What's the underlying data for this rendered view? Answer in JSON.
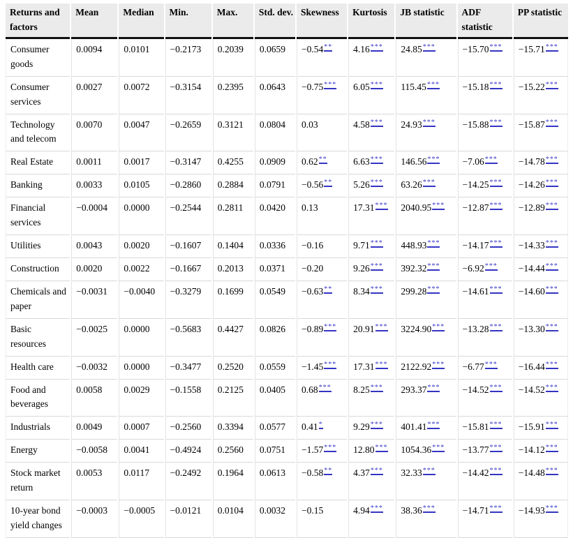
{
  "theme": {
    "header_bg": "#ebebeb",
    "significance_link_color": "#3b3bc8",
    "significance_underline_color": "#3434c4",
    "grid_line_color": "#d9d9d9",
    "header_rule_color": "#111111"
  },
  "table": {
    "columns": [
      "Returns and factors",
      "Mean",
      "Median",
      "Min.",
      "Max.",
      "Std. dev.",
      "Skewness",
      "Kurtosis",
      "JB statistic",
      "ADF statistic",
      "PP statistic"
    ],
    "rows": [
      {
        "label": "Consumer goods",
        "cells": [
          {
            "v": "0.0094"
          },
          {
            "v": "0.0101"
          },
          {
            "v": "−0.2173"
          },
          {
            "v": "0.2039"
          },
          {
            "v": "0.0659"
          },
          {
            "v": "−0.54",
            "sig": "**"
          },
          {
            "v": "4.16",
            "sig": "***"
          },
          {
            "v": "24.85",
            "sig": "***"
          },
          {
            "v": "−15.70",
            "sig": "***"
          },
          {
            "v": "−15.71",
            "sig": "***"
          }
        ]
      },
      {
        "label": "Consumer services",
        "cells": [
          {
            "v": "0.0027"
          },
          {
            "v": "0.0072"
          },
          {
            "v": "−0.3154"
          },
          {
            "v": "0.2395"
          },
          {
            "v": "0.0643"
          },
          {
            "v": "−0.75",
            "sig": "***"
          },
          {
            "v": "6.05",
            "sig": "***"
          },
          {
            "v": "115.45",
            "sig": "***"
          },
          {
            "v": "−15.18",
            "sig": "***"
          },
          {
            "v": "−15.22",
            "sig": "***"
          }
        ]
      },
      {
        "label": "Technology and telecom",
        "cells": [
          {
            "v": "0.0070"
          },
          {
            "v": "0.0047"
          },
          {
            "v": "−0.2659"
          },
          {
            "v": "0.3121"
          },
          {
            "v": "0.0804"
          },
          {
            "v": "0.03"
          },
          {
            "v": "4.58",
            "sig": "***"
          },
          {
            "v": "24.93",
            "sig": "***"
          },
          {
            "v": "−15.88",
            "sig": "***"
          },
          {
            "v": "−15.87",
            "sig": "***"
          }
        ]
      },
      {
        "label": "Real Estate",
        "cells": [
          {
            "v": "0.0011"
          },
          {
            "v": "0.0017"
          },
          {
            "v": "−0.3147"
          },
          {
            "v": "0.4255"
          },
          {
            "v": "0.0909"
          },
          {
            "v": "0.62",
            "sig": "**"
          },
          {
            "v": "6.63",
            "sig": "***"
          },
          {
            "v": "146.56",
            "sig": "***"
          },
          {
            "v": "−7.06",
            "sig": "***"
          },
          {
            "v": "−14.78",
            "sig": "***"
          }
        ]
      },
      {
        "label": "Banking",
        "cells": [
          {
            "v": "0.0033"
          },
          {
            "v": "0.0105"
          },
          {
            "v": "−0.2860"
          },
          {
            "v": "0.2884"
          },
          {
            "v": "0.0791"
          },
          {
            "v": "−0.56",
            "sig": "**"
          },
          {
            "v": "5.26",
            "sig": "***"
          },
          {
            "v": "63.26",
            "sig": "***"
          },
          {
            "v": "−14.25",
            "sig": "***"
          },
          {
            "v": "−14.26",
            "sig": "***"
          }
        ]
      },
      {
        "label": "Financial services",
        "cells": [
          {
            "v": "−0.0004"
          },
          {
            "v": "0.0000"
          },
          {
            "v": "−0.2544"
          },
          {
            "v": "0.2811"
          },
          {
            "v": "0.0420"
          },
          {
            "v": "0.13"
          },
          {
            "v": "17.31",
            "sig": "***"
          },
          {
            "v": "2040.95",
            "sig": "***"
          },
          {
            "v": "−12.87",
            "sig": "***"
          },
          {
            "v": "−12.89",
            "sig": "***"
          }
        ]
      },
      {
        "label": "Utilities",
        "cells": [
          {
            "v": "0.0043"
          },
          {
            "v": "0.0020"
          },
          {
            "v": "−0.1607"
          },
          {
            "v": "0.1404"
          },
          {
            "v": "0.0336"
          },
          {
            "v": "−0.16"
          },
          {
            "v": "9.71",
            "sig": "***"
          },
          {
            "v": "448.93",
            "sig": "***"
          },
          {
            "v": "−14.17",
            "sig": "***"
          },
          {
            "v": "−14.33",
            "sig": "***"
          }
        ]
      },
      {
        "label": "Construction",
        "cells": [
          {
            "v": "0.0020"
          },
          {
            "v": "0.0022"
          },
          {
            "v": "−0.1667"
          },
          {
            "v": "0.2013"
          },
          {
            "v": "0.0371"
          },
          {
            "v": "−0.20"
          },
          {
            "v": "9.26",
            "sig": "***"
          },
          {
            "v": "392.32",
            "sig": "***"
          },
          {
            "v": "−6.92",
            "sig": "***"
          },
          {
            "v": "−14.44",
            "sig": "***"
          }
        ]
      },
      {
        "label": "Chemicals and paper",
        "cells": [
          {
            "v": "−0.0031"
          },
          {
            "v": "−0.0040"
          },
          {
            "v": "−0.3279"
          },
          {
            "v": "0.1699"
          },
          {
            "v": "0.0549"
          },
          {
            "v": "−0.63",
            "sig": "**"
          },
          {
            "v": "8.34",
            "sig": "***"
          },
          {
            "v": "299.28",
            "sig": "***"
          },
          {
            "v": "−14.61",
            "sig": "***"
          },
          {
            "v": "−14.60",
            "sig": "***"
          }
        ]
      },
      {
        "label": "Basic resources",
        "cells": [
          {
            "v": "−0.0025"
          },
          {
            "v": "0.0000"
          },
          {
            "v": "−0.5683"
          },
          {
            "v": "0.4427"
          },
          {
            "v": "0.0826"
          },
          {
            "v": "−0.89",
            "sig": "***"
          },
          {
            "v": "20.91",
            "sig": "***"
          },
          {
            "v": "3224.90",
            "sig": "***"
          },
          {
            "v": "−13.28",
            "sig": "***"
          },
          {
            "v": "−13.30",
            "sig": "***"
          }
        ]
      },
      {
        "label": "Health care",
        "cells": [
          {
            "v": "−0.0032"
          },
          {
            "v": "0.0000"
          },
          {
            "v": "−0.3477"
          },
          {
            "v": "0.2520"
          },
          {
            "v": "0.0559"
          },
          {
            "v": "−1.45",
            "sig": "***"
          },
          {
            "v": "17.31",
            "sig": "***"
          },
          {
            "v": "2122.92",
            "sig": "***"
          },
          {
            "v": "−6.77",
            "sig": "***"
          },
          {
            "v": "−16.44",
            "sig": "***"
          }
        ]
      },
      {
        "label": "Food and beverages",
        "cells": [
          {
            "v": "0.0058"
          },
          {
            "v": "0.0029"
          },
          {
            "v": "−0.1558"
          },
          {
            "v": "0.2125"
          },
          {
            "v": "0.0405"
          },
          {
            "v": "0.68",
            "sig": "***"
          },
          {
            "v": "8.25",
            "sig": "***"
          },
          {
            "v": "293.37",
            "sig": "***"
          },
          {
            "v": "−14.52",
            "sig": "***"
          },
          {
            "v": "−14.52",
            "sig": "***"
          }
        ]
      },
      {
        "label": "Industrials",
        "cells": [
          {
            "v": "0.0049"
          },
          {
            "v": "0.0007"
          },
          {
            "v": "−0.2560"
          },
          {
            "v": "0.3394"
          },
          {
            "v": "0.0577"
          },
          {
            "v": "0.41",
            "sig": "*"
          },
          {
            "v": "9.29",
            "sig": "***"
          },
          {
            "v": "401.41",
            "sig": "***"
          },
          {
            "v": "−15.81",
            "sig": "***"
          },
          {
            "v": "−15.91",
            "sig": "***"
          }
        ]
      },
      {
        "label": "Energy",
        "cells": [
          {
            "v": "−0.0058"
          },
          {
            "v": "0.0041"
          },
          {
            "v": "−0.4924"
          },
          {
            "v": "0.2560"
          },
          {
            "v": "0.0751"
          },
          {
            "v": "−1.57",
            "sig": "***"
          },
          {
            "v": "12.80",
            "sig": "***"
          },
          {
            "v": "1054.36",
            "sig": "***"
          },
          {
            "v": "−13.77",
            "sig": "***"
          },
          {
            "v": "−14.12",
            "sig": "***"
          }
        ]
      },
      {
        "label": "Stock market return",
        "cells": [
          {
            "v": "0.0053"
          },
          {
            "v": "0.0117"
          },
          {
            "v": "−0.2492"
          },
          {
            "v": "0.1964"
          },
          {
            "v": "0.0613"
          },
          {
            "v": "−0.58",
            "sig": "**"
          },
          {
            "v": "4.37",
            "sig": "***"
          },
          {
            "v": "32.33",
            "sig": "***"
          },
          {
            "v": "−14.42",
            "sig": "***"
          },
          {
            "v": "−14.48",
            "sig": "***"
          }
        ]
      },
      {
        "label": "10-year bond yield changes",
        "cells": [
          {
            "v": "−0.0003"
          },
          {
            "v": "−0.0005"
          },
          {
            "v": "−0.0121"
          },
          {
            "v": "0.0104"
          },
          {
            "v": "0.0032"
          },
          {
            "v": "−0.15"
          },
          {
            "v": "4.94",
            "sig": "***"
          },
          {
            "v": "38.36",
            "sig": "***"
          },
          {
            "v": "−14.71",
            "sig": "***"
          },
          {
            "v": "−14.93",
            "sig": "***"
          }
        ]
      }
    ]
  }
}
